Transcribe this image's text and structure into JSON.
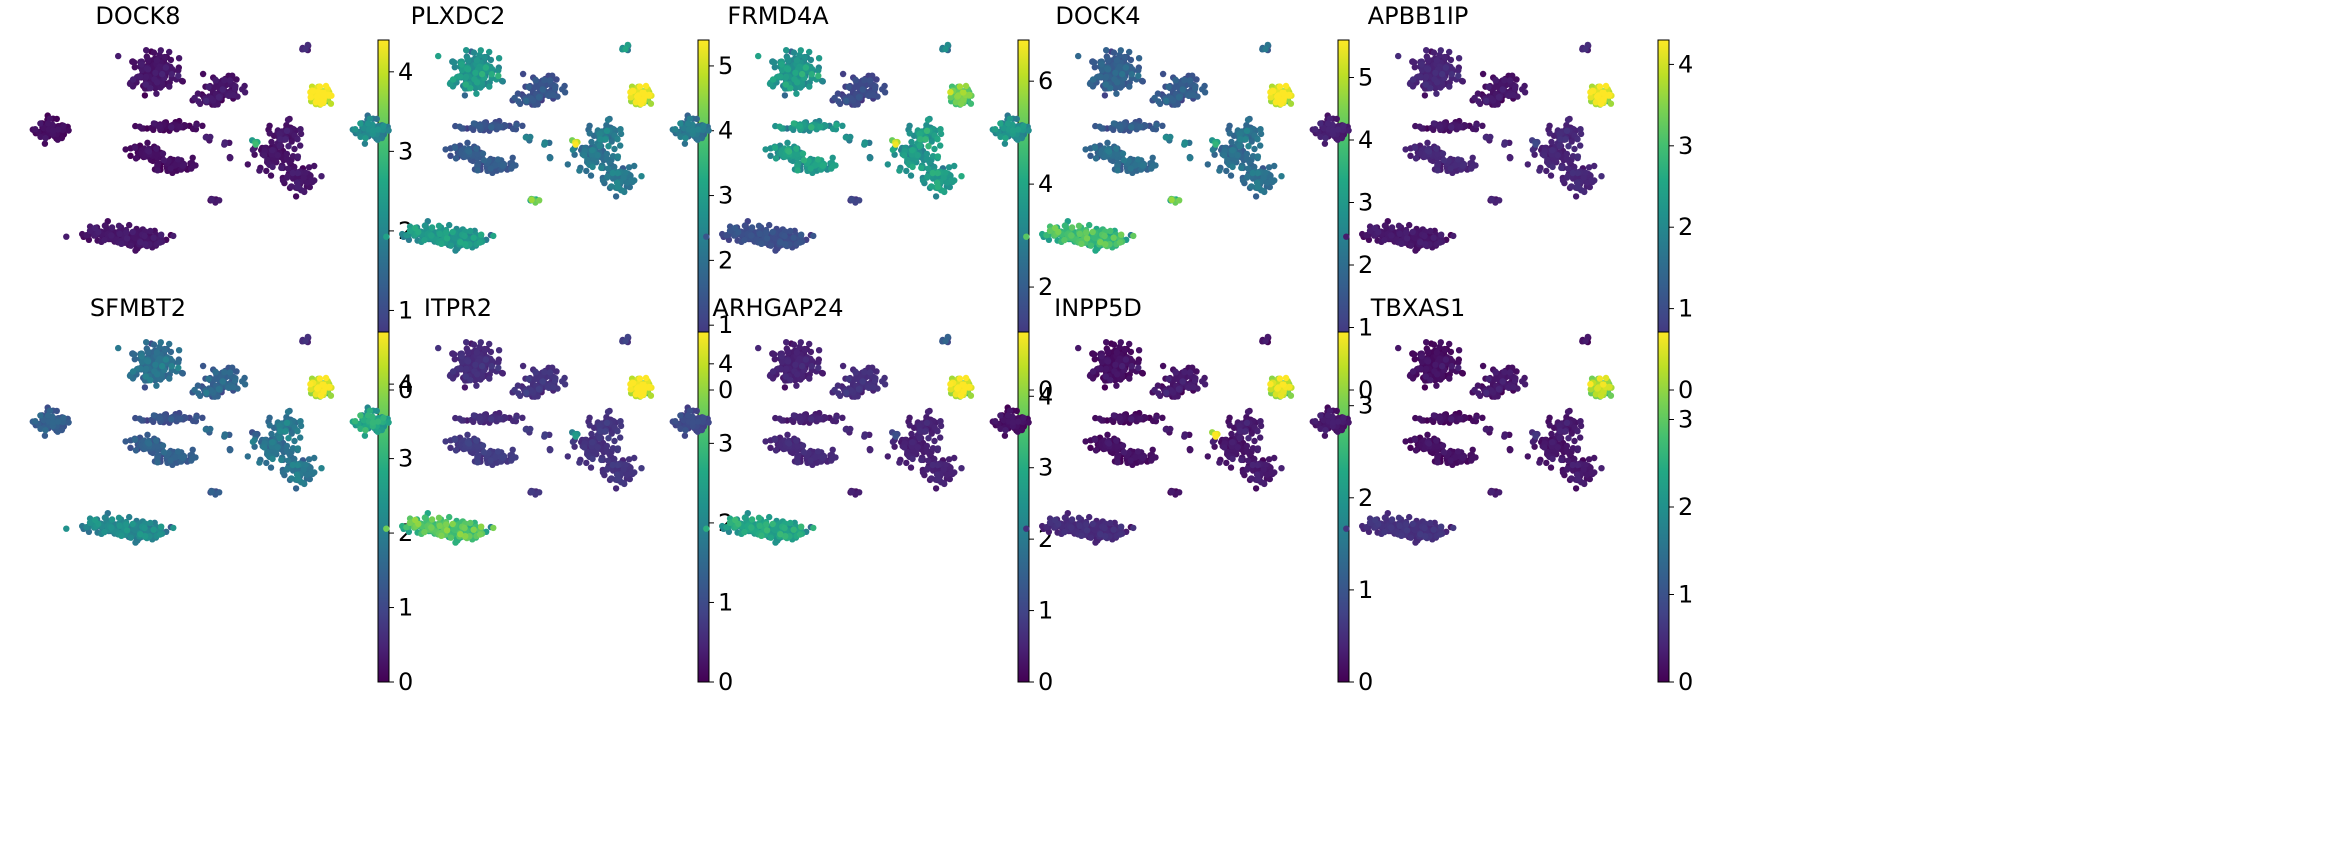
{
  "figure": {
    "description_type": "UMAP embedding feature plots",
    "colormap": "viridis"
  },
  "chart_data": [
    {
      "type": "scatter",
      "title": "DOCK8",
      "xlabel": "",
      "ylabel": "",
      "colorbar": {
        "vmin": 0,
        "vmax": 4.4,
        "ticks": [
          0,
          1,
          2,
          3,
          4
        ]
      },
      "cluster_expression": {
        "c1": 0.1,
        "c2": 0.2,
        "c3": 0.2,
        "c4": 0.1,
        "c5": 0.1,
        "c6": 0.2,
        "c7": 0.2,
        "c8": 0.3,
        "c9": 0.2,
        "c10": 4.1,
        "c11": 0.5,
        "c12": 2.5
      }
    },
    {
      "type": "scatter",
      "title": "PLXDC2",
      "xlabel": "",
      "ylabel": "",
      "colorbar": {
        "vmin": 0,
        "vmax": 5.4,
        "ticks": [
          0,
          1,
          2,
          3,
          4,
          5
        ]
      },
      "cluster_expression": {
        "c1": 2.3,
        "c2": 2.6,
        "c3": 1.3,
        "c4": 1.3,
        "c5": 1.4,
        "c6": 2.6,
        "c7": 3.7,
        "c8": 2.1,
        "c9": 2.0,
        "c10": 4.8,
        "c11": 2.8,
        "c12": 4.5
      }
    },
    {
      "type": "scatter",
      "title": "FRMD4A",
      "xlabel": "",
      "ylabel": "",
      "colorbar": {
        "vmin": 0,
        "vmax": 6.8,
        "ticks": [
          0,
          2,
          4,
          6
        ]
      },
      "cluster_expression": {
        "c1": 2.5,
        "c2": 3.3,
        "c3": 1.4,
        "c4": 3.4,
        "c5": 3.4,
        "c6": 1.5,
        "c7": 1.2,
        "c8": 3.0,
        "c9": 3.4,
        "c10": 4.8,
        "c11": 3.0,
        "c12": 5.5
      }
    },
    {
      "type": "scatter",
      "title": "DOCK4",
      "xlabel": "",
      "ylabel": "",
      "colorbar": {
        "vmin": 0,
        "vmax": 5.6,
        "ticks": [
          0,
          1,
          2,
          3,
          4,
          5
        ]
      },
      "cluster_expression": {
        "c1": 2.6,
        "c2": 1.6,
        "c3": 1.5,
        "c4": 1.5,
        "c5": 1.8,
        "c6": 3.5,
        "c7": 3.8,
        "c8": 2.3,
        "c9": 1.9,
        "c10": 5.0,
        "c11": 2.0,
        "c12": 3.0
      }
    },
    {
      "type": "scatter",
      "title": "APBB1IP",
      "xlabel": "",
      "ylabel": "",
      "colorbar": {
        "vmin": 0,
        "vmax": 4.3,
        "ticks": [
          0,
          1,
          2,
          3,
          4
        ]
      },
      "cluster_expression": {
        "c1": 0.3,
        "c2": 0.4,
        "c3": 0.2,
        "c4": 0.2,
        "c5": 0.4,
        "c6": 0.2,
        "c7": 0.3,
        "c8": 0.4,
        "c9": 0.4,
        "c10": 3.8,
        "c11": 0.5,
        "c12": 0.8
      }
    },
    {
      "type": "scatter",
      "title": "SFMBT2",
      "xlabel": "",
      "ylabel": "",
      "colorbar": {
        "vmin": 0,
        "vmax": 4.7,
        "ticks": [
          0,
          1,
          2,
          3,
          4
        ]
      },
      "cluster_expression": {
        "c1": 1.3,
        "c2": 1.6,
        "c3": 1.4,
        "c4": 1.1,
        "c5": 1.3,
        "c6": 2.0,
        "c7": 1.2,
        "c8": 1.5,
        "c9": 1.7,
        "c10": 4.1,
        "c11": 0.6,
        "c12": 1.2
      }
    },
    {
      "type": "scatter",
      "title": "ITPR2",
      "xlabel": "",
      "ylabel": "",
      "colorbar": {
        "vmin": 0,
        "vmax": 4.4,
        "ticks": [
          0,
          1,
          2,
          3,
          4
        ]
      },
      "cluster_expression": {
        "c1": 2.4,
        "c2": 0.5,
        "c3": 0.6,
        "c4": 0.5,
        "c5": 0.7,
        "c6": 2.9,
        "c7": 0.6,
        "c8": 0.7,
        "c9": 0.6,
        "c10": 4.0,
        "c11": 0.8,
        "c12": 2.0
      }
    },
    {
      "type": "scatter",
      "title": "ARHGAP24",
      "xlabel": "",
      "ylabel": "",
      "colorbar": {
        "vmin": 0,
        "vmax": 4.9,
        "ticks": [
          0,
          1,
          2,
          3,
          4
        ]
      },
      "cluster_expression": {
        "c1": 1.0,
        "c2": 0.4,
        "c3": 0.6,
        "c4": 0.4,
        "c5": 0.5,
        "c6": 2.6,
        "c7": 0.3,
        "c8": 0.5,
        "c9": 0.4,
        "c10": 4.3,
        "c11": 1.4,
        "c12": 1.0
      }
    },
    {
      "type": "scatter",
      "title": "INPP5D",
      "xlabel": "",
      "ylabel": "",
      "colorbar": {
        "vmin": 0,
        "vmax": 3.8,
        "ticks": [
          0,
          1,
          2,
          3
        ]
      },
      "cluster_expression": {
        "c1": 0.1,
        "c2": 0.1,
        "c3": 0.2,
        "c4": 0.1,
        "c5": 0.1,
        "c6": 0.4,
        "c7": 0.1,
        "c8": 0.2,
        "c9": 0.2,
        "c10": 3.2,
        "c11": 0.2,
        "c12": 3.4
      }
    },
    {
      "type": "scatter",
      "title": "TBXAS1",
      "xlabel": "",
      "ylabel": "",
      "colorbar": {
        "vmin": 0,
        "vmax": 4.0,
        "ticks": [
          0,
          1,
          2,
          3
        ]
      },
      "cluster_expression": {
        "c1": 0.2,
        "c2": 0.1,
        "c3": 0.2,
        "c4": 0.1,
        "c5": 0.1,
        "c6": 0.5,
        "c7": 0.2,
        "c8": 0.2,
        "c9": 0.2,
        "c10": 3.2,
        "c11": 0.2,
        "c12": 0.5
      }
    }
  ]
}
